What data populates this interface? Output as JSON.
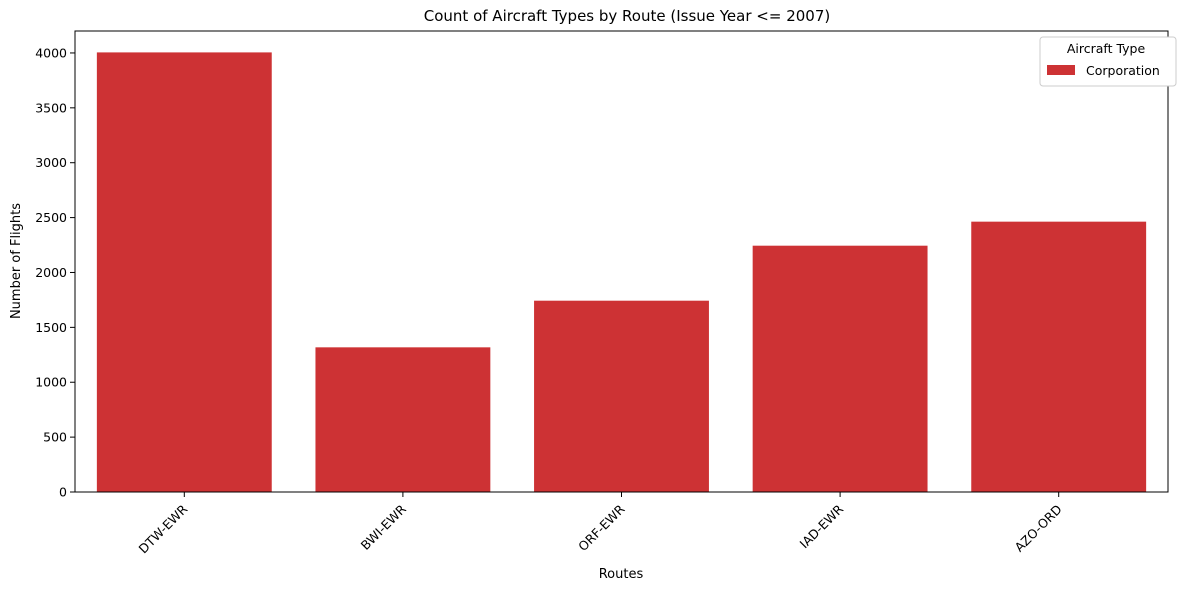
{
  "chart_data": {
    "type": "bar",
    "title": "Count of Aircraft Types by Route (Issue Year <= 2007)",
    "xlabel": "Routes",
    "ylabel": "Number of Flights",
    "categories": [
      "DTW-EWR",
      "BWI-EWR",
      "ORF-EWR",
      "IAD-EWR",
      "AZO-ORD"
    ],
    "series": [
      {
        "name": "Corporation",
        "values": [
          4005,
          1318,
          1743,
          2244,
          2463
        ],
        "color": "#cd3234"
      }
    ],
    "ylim": [
      0,
      4200
    ],
    "yticks": [
      0,
      500,
      1000,
      1500,
      2000,
      2500,
      3000,
      3500,
      4000
    ],
    "grid": false,
    "legend": {
      "title": "Aircraft Type",
      "position": "top-right"
    },
    "xtick_rotation": 45
  }
}
